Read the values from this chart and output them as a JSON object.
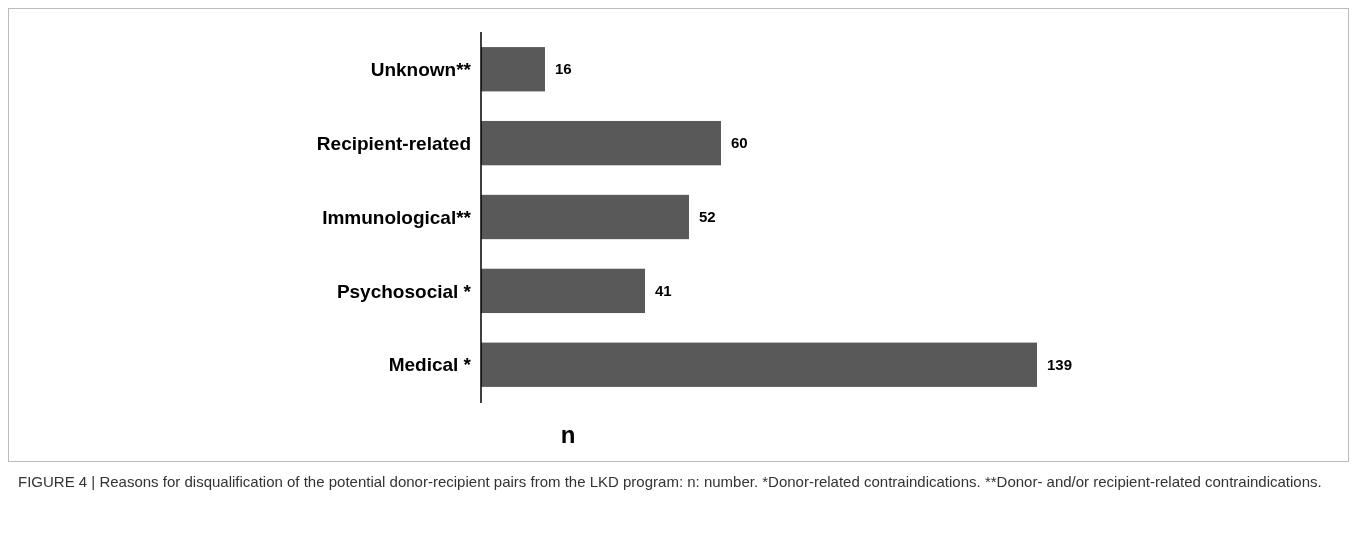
{
  "chart_data": {
    "type": "bar",
    "orientation": "horizontal",
    "categories": [
      "Unknown**",
      "Recipient-related",
      "Immunological**",
      "Psychosocial *",
      "Medical *"
    ],
    "values": [
      16,
      60,
      52,
      41,
      139
    ],
    "color": "#595959",
    "data_labels": true,
    "xlabel": "n",
    "annotations": [
      "FIGURE 4 | Reasons for disqualification of the potential donor-recipient pairs from the LKD program: n: number. *Donor-related contraindications. **Donor- and/or recipient-related contraindications."
    ]
  }
}
